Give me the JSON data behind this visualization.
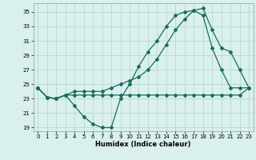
{
  "xlabel": "Humidex (Indice chaleur)",
  "xlim": [
    -0.5,
    23.5
  ],
  "ylim": [
    18.5,
    36.2
  ],
  "yticks": [
    19,
    21,
    23,
    25,
    27,
    29,
    31,
    33,
    35
  ],
  "xticks": [
    0,
    1,
    2,
    3,
    4,
    5,
    6,
    7,
    8,
    9,
    10,
    11,
    12,
    13,
    14,
    15,
    16,
    17,
    18,
    19,
    20,
    21,
    22,
    23
  ],
  "bg_color": "#d9f0ed",
  "grid_color": "#b8d8d4",
  "line_color": "#1a6b60",
  "line1_y": [
    24.5,
    23.2,
    23.0,
    23.5,
    22.0,
    20.5,
    19.5,
    19.0,
    19.0,
    23.0,
    25.0,
    27.5,
    29.5,
    31.0,
    33.0,
    34.5,
    35.0,
    35.2,
    34.5,
    30.0,
    27.0,
    24.5,
    24.5,
    24.5
  ],
  "line2_y": [
    24.5,
    23.2,
    23.0,
    23.5,
    24.0,
    24.0,
    24.0,
    24.0,
    24.5,
    25.0,
    25.5,
    26.0,
    27.0,
    28.5,
    30.5,
    32.5,
    34.0,
    35.2,
    35.5,
    32.5,
    30.0,
    29.5,
    27.0,
    24.5
  ],
  "line3_y": [
    24.5,
    23.2,
    23.0,
    23.5,
    23.5,
    23.5,
    23.5,
    23.5,
    23.5,
    23.5,
    23.5,
    23.5,
    23.5,
    23.5,
    23.5,
    23.5,
    23.5,
    23.5,
    23.5,
    23.5,
    23.5,
    23.5,
    23.5,
    24.5
  ]
}
